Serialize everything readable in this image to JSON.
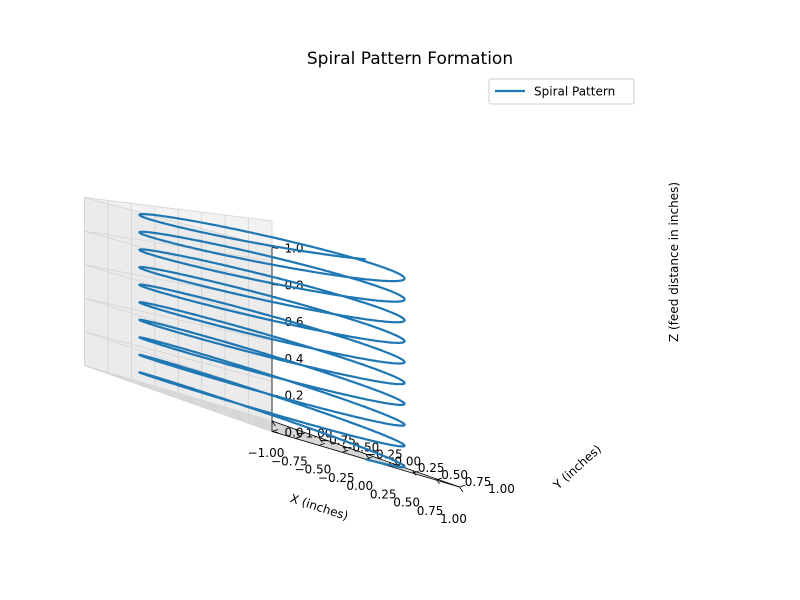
{
  "chart_data": {
    "type": "line",
    "projection": "3d",
    "title": "Spiral Pattern Formation",
    "xlabel": "X (inches)",
    "ylabel": "Y (inches)",
    "zlabel": "Z (feed distance in inches)",
    "xlim": [
      -1.0,
      1.0
    ],
    "ylim": [
      -1.0,
      1.0
    ],
    "zlim": [
      0.0,
      1.0
    ],
    "x_ticks": [
      "−1.00",
      "−0.75",
      "−0.50",
      "−0.25",
      "0.00",
      "0.25",
      "0.50",
      "0.75",
      "1.00"
    ],
    "y_ticks": [
      "−1.00",
      "−0.75",
      "−0.50",
      "−0.25",
      "0.00",
      "0.25",
      "0.50",
      "0.75",
      "1.00"
    ],
    "z_ticks": [
      "0.0",
      "0.2",
      "0.4",
      "0.6",
      "0.8",
      "1.0"
    ],
    "grid": true,
    "legend": {
      "position": "upper right",
      "entries": [
        "Spiral Pattern"
      ]
    },
    "series": [
      {
        "name": "Spiral Pattern",
        "color": "#1f77b4",
        "equation": "x = cos(t), y = sin(t), z = t / (20π), t from 0 to 20π",
        "radius": 1.0,
        "turns": 10,
        "z_range": [
          0.0,
          1.0
        ]
      }
    ]
  }
}
